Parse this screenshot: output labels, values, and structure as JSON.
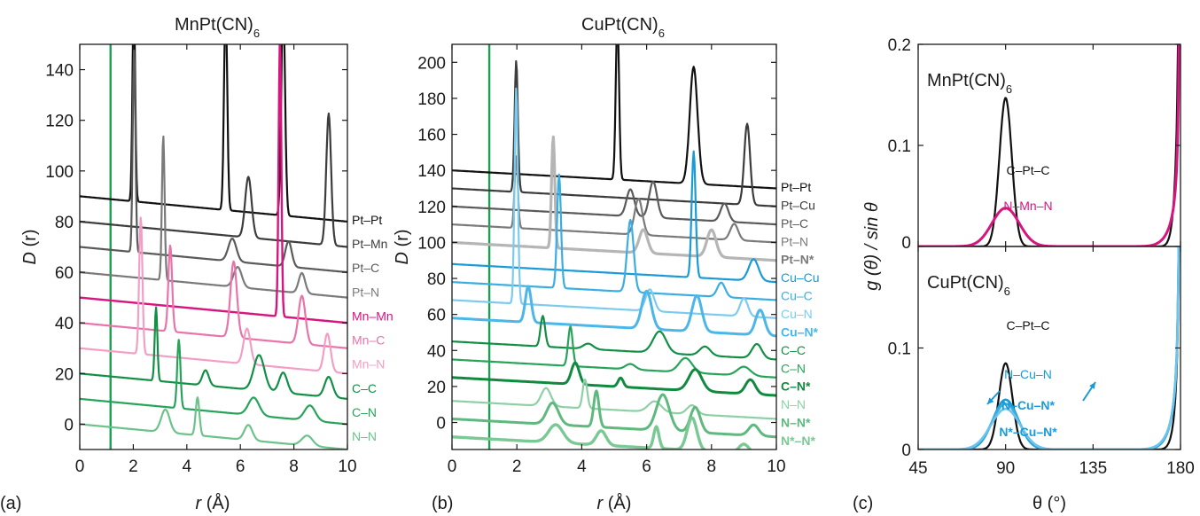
{
  "chart_data": [
    {
      "id": "a",
      "type": "line",
      "panel_label": "(a)",
      "title": "MnPt(CN)",
      "title_sub": "6",
      "ylabel": "D",
      "ylabel_tail": " (r)",
      "xlabel": "r",
      "xlabel_tail": " (Å)",
      "xlim": [
        0,
        10
      ],
      "ylim": [
        -10,
        150
      ],
      "xticks": [
        0,
        2,
        4,
        6,
        8,
        10
      ],
      "yticks": [
        0,
        20,
        40,
        60,
        80,
        100,
        120,
        140
      ],
      "vline": {
        "x": 1.15,
        "color": "#1aa150"
      },
      "series": [
        {
          "name": "Pt–Pt",
          "color": "#111111",
          "width": 2.2,
          "offset": 90,
          "slope": -1.0,
          "peaks": [
            [
              2.02,
              80,
              0.05
            ],
            [
              5.45,
              82,
              0.06
            ],
            [
              7.6,
              85,
              0.07
            ]
          ]
        },
        {
          "name": "Pt–Mn",
          "color": "#3d3d3d",
          "width": 2.2,
          "offset": 80,
          "slope": -1.0,
          "peaks": [
            [
              6.3,
              24,
              0.12
            ],
            [
              9.3,
              52,
              0.09
            ]
          ]
        },
        {
          "name": "Pt–C",
          "color": "#5a5a5a",
          "width": 2.2,
          "offset": 70,
          "slope": -1.0,
          "peaks": [
            [
              2.03,
              80,
              0.05
            ],
            [
              5.7,
              9,
              0.15
            ],
            [
              7.8,
              10,
              0.12
            ]
          ]
        },
        {
          "name": "Pt–N",
          "color": "#7a7a7a",
          "width": 2.2,
          "offset": 60,
          "slope": -1.0,
          "peaks": [
            [
              3.12,
              57,
              0.05
            ],
            [
              5.9,
              8,
              0.15
            ],
            [
              8.3,
              8,
              0.12
            ]
          ]
        },
        {
          "name": "Mn–Mn",
          "color": "#d6157e",
          "width": 2.4,
          "offset": 50,
          "slope": -1.0,
          "peaks": [
            [
              7.48,
              110,
              0.05
            ]
          ]
        },
        {
          "name": "Mn–C",
          "color": "#e874aa",
          "width": 2.2,
          "offset": 40,
          "slope": -1.0,
          "peaks": [
            [
              3.38,
              34,
              0.07
            ],
            [
              5.75,
              30,
              0.12
            ],
            [
              8.3,
              19,
              0.13
            ]
          ]
        },
        {
          "name": "Mn–N",
          "color": "#f29ec5",
          "width": 2.2,
          "offset": 30,
          "slope": -1.0,
          "peaks": [
            [
              2.28,
              54,
              0.06
            ],
            [
              6.25,
              14,
              0.13
            ],
            [
              9.25,
              15,
              0.12
            ]
          ]
        },
        {
          "name": "C–C",
          "color": "#138f45",
          "width": 2.2,
          "offset": 20,
          "slope": -1.0,
          "peaks": [
            [
              2.85,
              29,
              0.05
            ],
            [
              4.7,
              6,
              0.12
            ],
            [
              6.7,
              14,
              0.2
            ],
            [
              7.6,
              8,
              0.15
            ],
            [
              9.3,
              8,
              0.15
            ]
          ]
        },
        {
          "name": "C–N",
          "color": "#27a35a",
          "width": 2.2,
          "offset": 10,
          "slope": -1.0,
          "peaks": [
            [
              3.7,
              27,
              0.06
            ],
            [
              6.5,
              7,
              0.2
            ],
            [
              8.6,
              6,
              0.2
            ]
          ]
        },
        {
          "name": "N–N",
          "color": "#6cc28a",
          "width": 2.2,
          "offset": 0,
          "slope": -1.0,
          "peaks": [
            [
              3.2,
              9,
              0.16
            ],
            [
              4.4,
              15,
              0.07
            ],
            [
              6.3,
              6,
              0.15
            ],
            [
              8.5,
              4,
              0.2
            ]
          ]
        }
      ]
    },
    {
      "id": "b",
      "type": "line",
      "panel_label": "(b)",
      "title": "CuPt(CN)",
      "title_sub": "6",
      "ylabel": "D",
      "ylabel_tail": " (r)",
      "xlabel": "r",
      "xlabel_tail": " (Å)",
      "xlim": [
        0,
        10
      ],
      "ylim": [
        -15,
        210
      ],
      "xticks": [
        0,
        2,
        4,
        6,
        8,
        10
      ],
      "yticks": [
        0,
        20,
        40,
        60,
        80,
        100,
        120,
        140,
        160,
        180,
        200
      ],
      "vline": {
        "x": 1.15,
        "color": "#1aa150"
      },
      "series": [
        {
          "name": "Pt–Pt",
          "color": "#111111",
          "width": 2.2,
          "offset": 140,
          "slope": -1.0,
          "peaks": [
            [
              5.1,
              90,
              0.05
            ],
            [
              7.45,
              65,
              0.12
            ]
          ]
        },
        {
          "name": "Pt–Cu",
          "color": "#3d3d3d",
          "width": 2.2,
          "offset": 130,
          "slope": -1.0,
          "peaks": [
            [
              1.98,
              73,
              0.05
            ],
            [
              9.1,
              45,
              0.09
            ]
          ]
        },
        {
          "name": "Pt–C",
          "color": "#5a5a5a",
          "width": 2.2,
          "offset": 120,
          "slope": -1.0,
          "peaks": [
            [
              5.5,
              15,
              0.12
            ],
            [
              6.2,
              20,
              0.12
            ],
            [
              8.4,
              10,
              0.12
            ]
          ]
        },
        {
          "name": "Pt–N",
          "color": "#7a7a7a",
          "width": 2.2,
          "offset": 110,
          "slope": -1.0,
          "peaks": [
            [
              1.98,
              40,
              0.05
            ],
            [
              5.75,
              20,
              0.12
            ],
            [
              8.7,
              9,
              0.12
            ]
          ]
        },
        {
          "name": "Pt–N*",
          "bold": true,
          "color": "#b5b5b5",
          "width": 3.2,
          "offset": 100,
          "slope": -1.0,
          "peaks": [
            [
              3.12,
              62,
              0.05
            ],
            [
              5.9,
              13,
              0.13
            ],
            [
              8.0,
              15,
              0.14
            ]
          ]
        },
        {
          "name": "Cu–Cu",
          "color": "#1a9ad6",
          "width": 2.2,
          "offset": 88,
          "slope": -1.0,
          "peaks": [
            [
              7.45,
              70,
              0.06
            ],
            [
              9.3,
              12,
              0.15
            ]
          ]
        },
        {
          "name": "Cu–C",
          "color": "#3aaee2",
          "width": 2.2,
          "offset": 78,
          "slope": -1.0,
          "peaks": [
            [
              3.3,
              63,
              0.06
            ],
            [
              5.5,
              40,
              0.1
            ],
            [
              8.3,
              8,
              0.12
            ]
          ]
        },
        {
          "name": "Cu–N",
          "color": "#7ccbef",
          "width": 2.2,
          "offset": 68,
          "slope": -1.0,
          "peaks": [
            [
              1.98,
              120,
              0.05
            ],
            [
              6.1,
              12,
              0.13
            ],
            [
              9.0,
              10,
              0.12
            ]
          ]
        },
        {
          "name": "Cu–N*",
          "bold": true,
          "color": "#4bb6e8",
          "width": 3.0,
          "offset": 58,
          "slope": -1.0,
          "peaks": [
            [
              2.35,
              20,
              0.09
            ],
            [
              6.0,
              21,
              0.15
            ],
            [
              7.55,
              20,
              0.15
            ],
            [
              9.5,
              14,
              0.14
            ]
          ]
        },
        {
          "name": "C–C",
          "color": "#138f45",
          "width": 2.2,
          "offset": 45,
          "slope": -1.0,
          "peaks": [
            [
              2.8,
              17,
              0.07
            ],
            [
              4.2,
              3,
              0.15
            ],
            [
              6.4,
              12,
              0.2
            ],
            [
              7.8,
              5,
              0.16
            ],
            [
              9.4,
              8,
              0.15
            ]
          ]
        },
        {
          "name": "C–N",
          "color": "#27a35a",
          "width": 2.2,
          "offset": 35,
          "slope": -1.0,
          "peaks": [
            [
              3.65,
              22,
              0.07
            ],
            [
              5.5,
              3,
              0.15
            ],
            [
              7.2,
              8,
              0.2
            ],
            [
              9.0,
              5,
              0.2
            ]
          ]
        },
        {
          "name": "C–N*",
          "bold": true,
          "color": "#0f8a3f",
          "width": 3.0,
          "offset": 25,
          "slope": -1.0,
          "peaks": [
            [
              3.8,
              12,
              0.12
            ],
            [
              5.2,
              5,
              0.08
            ],
            [
              7.5,
              12,
              0.2
            ],
            [
              9.2,
              8,
              0.15
            ]
          ]
        },
        {
          "name": "N–N",
          "color": "#8ed0a5",
          "width": 2.2,
          "offset": 12,
          "slope": -1.0,
          "peaks": [
            [
              2.9,
              10,
              0.15
            ],
            [
              4.1,
              16,
              0.07
            ],
            [
              6.25,
              6,
              0.2
            ],
            [
              7.4,
              5,
              0.15
            ]
          ]
        },
        {
          "name": "N–N*",
          "bold": true,
          "color": "#5fb97e",
          "width": 3.0,
          "offset": 2,
          "slope": -1.0,
          "peaks": [
            [
              3.1,
              12,
              0.18
            ],
            [
              4.45,
              20,
              0.08
            ],
            [
              6.5,
              20,
              0.2
            ],
            [
              7.5,
              14,
              0.15
            ],
            [
              9.3,
              6,
              0.15
            ]
          ]
        },
        {
          "name": "N*–N*",
          "bold": true,
          "color": "#7ac893",
          "width": 3.4,
          "offset": -8,
          "slope": -1.0,
          "peaks": [
            [
              3.2,
              10,
              0.22
            ],
            [
              4.6,
              8,
              0.15
            ],
            [
              6.3,
              12,
              0.08
            ],
            [
              7.4,
              18,
              0.15
            ],
            [
              9.0,
              5,
              0.15
            ]
          ]
        }
      ]
    },
    {
      "id": "c",
      "type": "line",
      "panel_label": "(c)",
      "ylabel": "g (θ) / sin θ",
      "xlabel": "θ (°)",
      "xlim": [
        45,
        180
      ],
      "xticks": [
        45,
        90,
        135,
        180
      ],
      "subpanels": [
        {
          "title": "MnPt(CN)",
          "title_sub": "6",
          "ylim": [
            0,
            0.2
          ],
          "yticks": [
            0,
            0.1,
            0.2
          ],
          "ytick_labels": [
            "0",
            "0.1",
            "0.2"
          ],
          "annotations": [
            {
              "text": "C–Pt–C",
              "color": "#111111",
              "bold": false
            },
            {
              "text": "N–Mn–N",
              "color": "#d6157e",
              "bold": false
            }
          ],
          "series": [
            {
              "name": "C–Pt–C",
              "color": "#111111",
              "width": 2.2,
              "center": 90,
              "sigma": 3.2,
              "amp": 0.147,
              "mirror": true
            },
            {
              "name": "N–Mn–N",
              "color": "#d6157e",
              "width": 3.0,
              "center": 90,
              "sigma": 7.0,
              "amp": 0.038,
              "mirror": true
            }
          ]
        },
        {
          "title": "CuPt(CN)",
          "title_sub": "6",
          "ylim": [
            0,
            0.2
          ],
          "yticks": [
            0,
            0.1
          ],
          "ytick_labels": [
            "0",
            "0.1"
          ],
          "annotations": [
            {
              "text": "C–Pt–C",
              "color": "#111111",
              "bold": false
            },
            {
              "text": "N–Cu–N",
              "color": "#1a9ad6",
              "bold": false
            },
            {
              "text": "N–Cu–N*",
              "color": "#1a9ad6",
              "bold": true
            },
            {
              "text": "N*–Cu–N*",
              "color": "#1a9ad6",
              "bold": true
            }
          ],
          "series": [
            {
              "name": "C–Pt–C",
              "color": "#111111",
              "width": 2.2,
              "center": 90,
              "sigma": 3.5,
              "amp": 0.085,
              "mirror": true
            },
            {
              "name": "N–Cu–N",
              "color": "#1a9ad6",
              "width": 2.6,
              "center": 90,
              "sigma": 6.5,
              "amp": 0.049,
              "mirror": true
            },
            {
              "name": "N–Cu–N*",
              "color": "#3aaee2",
              "width": 2.6,
              "center": 90,
              "sigma": 7.0,
              "amp": 0.045,
              "mirror": true
            },
            {
              "name": "N*–Cu–N*",
              "color": "#6cc4ec",
              "width": 2.6,
              "center": 90,
              "sigma": 7.5,
              "amp": 0.04,
              "mirror": true
            }
          ]
        }
      ]
    }
  ]
}
